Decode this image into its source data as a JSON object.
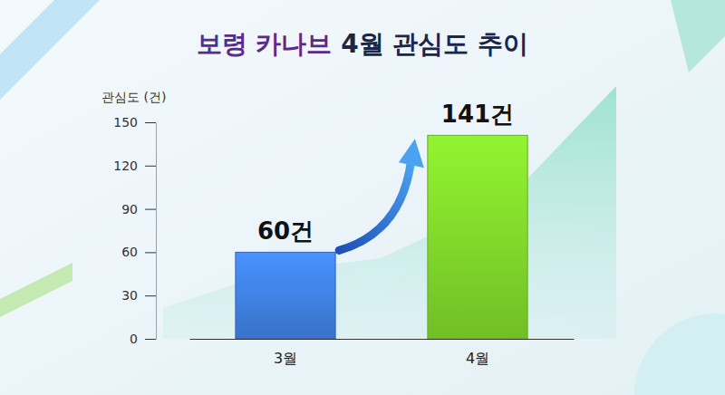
{
  "chart_data": {
    "type": "bar",
    "title": "보령 카나브 4월 관심도 추이",
    "y_label": "관심도 (건)",
    "categories": [
      "3월",
      "4월"
    ],
    "values": [
      60,
      141
    ],
    "value_labels": [
      "60건",
      "141건"
    ],
    "colors": [
      "#3f7fe0",
      "#7fd42a"
    ],
    "ylim": [
      0,
      150
    ],
    "yticks": [
      0,
      30,
      60,
      90,
      120,
      150
    ],
    "data_labels": true,
    "grid": false
  }
}
